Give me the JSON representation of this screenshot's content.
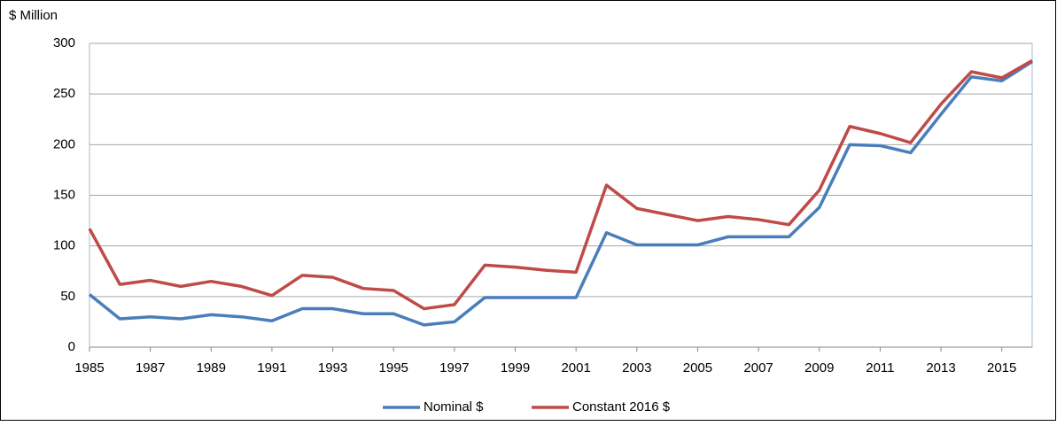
{
  "chart_data": {
    "type": "line",
    "ylabel": "$ Million",
    "x": [
      1985,
      1986,
      1987,
      1988,
      1989,
      1990,
      1991,
      1992,
      1993,
      1994,
      1995,
      1996,
      1997,
      1998,
      1999,
      2000,
      2001,
      2002,
      2003,
      2004,
      2005,
      2006,
      2007,
      2008,
      2009,
      2010,
      2011,
      2012,
      2013,
      2014,
      2015,
      2016
    ],
    "series": [
      {
        "name": "Nominal $",
        "color": "#4a7ebb",
        "values": [
          52,
          28,
          30,
          28,
          32,
          30,
          26,
          38,
          38,
          33,
          33,
          22,
          25,
          49,
          49,
          49,
          49,
          113,
          101,
          101,
          101,
          109,
          109,
          109,
          138,
          200,
          199,
          192,
          230,
          267,
          263,
          282
        ]
      },
      {
        "name": "Constant 2016 $",
        "color": "#be4b48",
        "values": [
          117,
          62,
          66,
          60,
          65,
          60,
          51,
          71,
          69,
          58,
          56,
          38,
          42,
          81,
          79,
          76,
          74,
          160,
          137,
          131,
          125,
          129,
          126,
          121,
          155,
          218,
          211,
          202,
          240,
          272,
          266,
          283
        ]
      }
    ],
    "xlim": [
      1985,
      2016
    ],
    "xticks": [
      1985,
      1987,
      1989,
      1991,
      1993,
      1995,
      1997,
      1999,
      2001,
      2003,
      2005,
      2007,
      2009,
      2011,
      2013,
      2015
    ],
    "ylim": [
      0,
      300
    ],
    "yticks": [
      0,
      50,
      100,
      150,
      200,
      250,
      300
    ],
    "grid": true
  }
}
